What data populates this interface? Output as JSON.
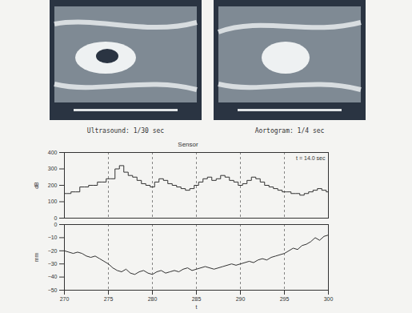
{
  "images": [
    {
      "caption": "Ultrasound: 1/30 sec"
    },
    {
      "caption": "Aortogram: 1/4 sec"
    }
  ],
  "chart_data": [
    {
      "type": "line",
      "title": "Sensor",
      "annotation": "t = 14.0 sec",
      "y_label": "dB",
      "color": "#333333",
      "grid": true,
      "tick_labels": "y",
      "xlim": [
        270,
        300
      ],
      "xticks": [
        270,
        275,
        280,
        285,
        290,
        295,
        300
      ],
      "ylim": [
        0,
        400
      ],
      "yticks": [
        0,
        100,
        200,
        300,
        400
      ],
      "x": [
        270,
        270.5,
        271,
        271.5,
        272,
        272.5,
        273,
        273.5,
        274,
        274.5,
        275,
        275.5,
        276,
        276.5,
        277,
        277.5,
        278,
        278.5,
        279,
        279.5,
        280,
        280.5,
        281,
        281.5,
        282,
        282.5,
        283,
        283.5,
        284,
        284.5,
        285,
        285.5,
        286,
        286.5,
        287,
        287.5,
        288,
        288.5,
        289,
        289.5,
        290,
        290.5,
        291,
        291.5,
        292,
        292.5,
        293,
        293.5,
        294,
        294.5,
        295,
        295.5,
        296,
        296.5,
        297,
        297.5,
        298,
        298.5,
        299,
        299.5,
        300
      ],
      "values": [
        150,
        150,
        160,
        160,
        190,
        190,
        200,
        200,
        220,
        220,
        240,
        240,
        300,
        320,
        280,
        260,
        250,
        230,
        210,
        200,
        190,
        220,
        240,
        230,
        210,
        200,
        190,
        180,
        170,
        180,
        200,
        220,
        240,
        250,
        230,
        240,
        260,
        250,
        230,
        220,
        200,
        210,
        230,
        250,
        240,
        220,
        200,
        190,
        180,
        170,
        160,
        160,
        150,
        150,
        140,
        150,
        160,
        170,
        180,
        170,
        160
      ],
      "line_style": "step"
    },
    {
      "type": "line",
      "y_label": "mm",
      "x_label": "t",
      "color": "#333333",
      "grid": true,
      "xlim": [
        270,
        300
      ],
      "xticks": [
        270,
        275,
        280,
        285,
        290,
        295,
        300
      ],
      "ylim": [
        -50,
        0
      ],
      "yticks": [
        -50,
        -40,
        -30,
        -20,
        -10,
        0
      ],
      "x": [
        270,
        270.5,
        271,
        271.5,
        272,
        272.5,
        273,
        273.5,
        274,
        274.5,
        275,
        275.5,
        276,
        276.5,
        277,
        277.5,
        278,
        278.5,
        279,
        279.5,
        280,
        280.5,
        281,
        281.5,
        282,
        282.5,
        283,
        283.5,
        284,
        284.5,
        285,
        285.5,
        286,
        286.5,
        287,
        287.5,
        288,
        288.5,
        289,
        289.5,
        290,
        290.5,
        291,
        291.5,
        292,
        292.5,
        293,
        293.5,
        294,
        294.5,
        295,
        295.5,
        296,
        296.5,
        297,
        297.5,
        298,
        298.5,
        299,
        299.5,
        300
      ],
      "values": [
        -20,
        -21,
        -22,
        -21,
        -22,
        -24,
        -25,
        -24,
        -26,
        -28,
        -30,
        -33,
        -35,
        -36,
        -34,
        -37,
        -38,
        -36,
        -35,
        -37,
        -38,
        -36,
        -35,
        -37,
        -36,
        -35,
        -36,
        -34,
        -33,
        -35,
        -34,
        -33,
        -32,
        -33,
        -34,
        -33,
        -32,
        -31,
        -30,
        -31,
        -30,
        -29,
        -28,
        -29,
        -27,
        -26,
        -27,
        -25,
        -24,
        -23,
        -22,
        -20,
        -18,
        -19,
        -16,
        -15,
        -13,
        -10,
        -12,
        -9,
        -8
      ],
      "line_style": "solid"
    }
  ]
}
